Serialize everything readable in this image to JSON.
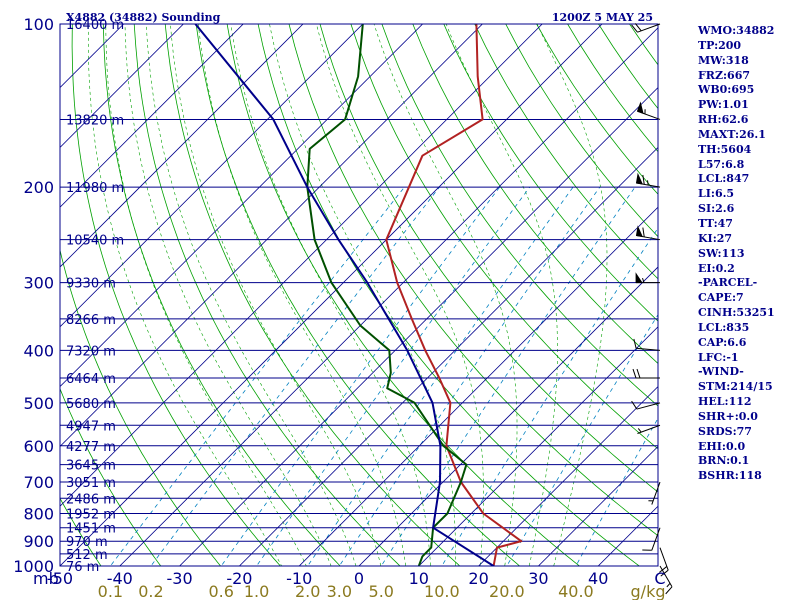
{
  "chart_data": {
    "type": "line",
    "title_left": "X4882 (34882) Sounding",
    "title_right": "1200Z  5 MAY 25",
    "pressure_axis_label": "mb",
    "pressure_ticks": [
      100,
      200,
      300,
      400,
      500,
      600,
      700,
      800,
      900,
      1000
    ],
    "temperature_ticks": [
      "-50",
      "-40",
      "-30",
      "-20",
      "-10",
      "0",
      "10",
      "20",
      "30",
      "40"
    ],
    "temperature_unit": "C",
    "mixing_ratio_ticks": [
      "0.1",
      "0.2",
      "0.6",
      "1.0",
      "2.0",
      "3.0",
      "5.0",
      "10.0",
      "20.0",
      "40.0"
    ],
    "mixing_ratio_unit": "g/kg",
    "heights": [
      {
        "p": 100,
        "label": "16400 m"
      },
      {
        "p": 150,
        "label": "13820 m"
      },
      {
        "p": 200,
        "label": "11980 m"
      },
      {
        "p": 250,
        "label": "10540 m"
      },
      {
        "p": 300,
        "label": "9330 m"
      },
      {
        "p": 350,
        "label": "8266 m"
      },
      {
        "p": 400,
        "label": "7320 m"
      },
      {
        "p": 450,
        "label": "6464 m"
      },
      {
        "p": 500,
        "label": "5680 m"
      },
      {
        "p": 550,
        "label": "4947 m"
      },
      {
        "p": 600,
        "label": "4277 m"
      },
      {
        "p": 650,
        "label": "3645 m"
      },
      {
        "p": 700,
        "label": "3051 m"
      },
      {
        "p": 750,
        "label": "2486 m"
      },
      {
        "p": 800,
        "label": "1952 m"
      },
      {
        "p": 850,
        "label": "1451 m"
      },
      {
        "p": 900,
        "label": "970 m"
      },
      {
        "p": 950,
        "label": "512 m"
      },
      {
        "p": 1000,
        "label": "76 m"
      }
    ],
    "series": [
      {
        "name": "temperature",
        "color": "#b22222",
        "points": [
          {
            "p": 1000,
            "t": 22.5
          },
          {
            "p": 925,
            "t": 20.0
          },
          {
            "p": 900,
            "t": 23.0
          },
          {
            "p": 800,
            "t": 12.0
          },
          {
            "p": 700,
            "t": 3.0
          },
          {
            "p": 600,
            "t": -5.5
          },
          {
            "p": 500,
            "t": -12.0
          },
          {
            "p": 450,
            "t": -18.0
          },
          {
            "p": 400,
            "t": -25.0
          },
          {
            "p": 350,
            "t": -32.5
          },
          {
            "p": 300,
            "t": -41.0
          },
          {
            "p": 250,
            "t": -50.0
          },
          {
            "p": 200,
            "t": -55.0
          },
          {
            "p": 175,
            "t": -58.0
          },
          {
            "p": 150,
            "t": -54.0
          },
          {
            "p": 125,
            "t": -62.0
          },
          {
            "p": 100,
            "t": -71.0
          }
        ]
      },
      {
        "name": "dewpoint",
        "color": "#005000",
        "points": [
          {
            "p": 1000,
            "t": 10.0
          },
          {
            "p": 960,
            "t": 9.0
          },
          {
            "p": 925,
            "t": 9.0
          },
          {
            "p": 850,
            "t": 6.0
          },
          {
            "p": 800,
            "t": 6.0
          },
          {
            "p": 700,
            "t": 3.0
          },
          {
            "p": 650,
            "t": 1.0
          },
          {
            "p": 600,
            "t": -6.0
          },
          {
            "p": 500,
            "t": -18.0
          },
          {
            "p": 470,
            "t": -25.0
          },
          {
            "p": 440,
            "t": -27.0
          },
          {
            "p": 400,
            "t": -31.0
          },
          {
            "p": 360,
            "t": -40.0
          },
          {
            "p": 300,
            "t": -52.0
          },
          {
            "p": 250,
            "t": -62.0
          },
          {
            "p": 200,
            "t": -72.0
          },
          {
            "p": 170,
            "t": -78.0
          },
          {
            "p": 150,
            "t": -77.0
          },
          {
            "p": 125,
            "t": -82.0
          },
          {
            "p": 100,
            "t": -90.0
          }
        ]
      },
      {
        "name": "parcel",
        "color": "#00008b",
        "points": [
          {
            "p": 1000,
            "t": 22.5
          },
          {
            "p": 850,
            "t": 6.0
          },
          {
            "p": 700,
            "t": -0.5
          },
          {
            "p": 600,
            "t": -6.5
          },
          {
            "p": 500,
            "t": -15.0
          },
          {
            "p": 400,
            "t": -28.0
          },
          {
            "p": 300,
            "t": -46.0
          },
          {
            "p": 250,
            "t": -58.0
          },
          {
            "p": 200,
            "t": -72.0
          },
          {
            "p": 150,
            "t": -89.0
          },
          {
            "p": 100,
            "t": -118.0
          }
        ]
      }
    ],
    "wind_barbs": [
      {
        "p": 100,
        "dir": 250,
        "speed": 20
      },
      {
        "p": 150,
        "dir": 290,
        "speed": 55
      },
      {
        "p": 200,
        "dir": 280,
        "speed": 65
      },
      {
        "p": 250,
        "dir": 280,
        "speed": 60
      },
      {
        "p": 300,
        "dir": 270,
        "speed": 55
      },
      {
        "p": 400,
        "dir": 275,
        "speed": 10
      },
      {
        "p": 450,
        "dir": 270,
        "speed": 20
      },
      {
        "p": 500,
        "dir": 255,
        "speed": 10
      },
      {
        "p": 550,
        "dir": 250,
        "speed": 5
      },
      {
        "p": 700,
        "dir": 200,
        "speed": 5
      },
      {
        "p": 850,
        "dir": 200,
        "speed": 10
      },
      {
        "p": 925,
        "dir": 160,
        "speed": 20
      },
      {
        "p": 1000,
        "dir": 150,
        "speed": 15
      }
    ],
    "grid": true,
    "colors": {
      "isobar": "#00008b",
      "isotherm": "#00008b",
      "dry_adiabat": "#00a000",
      "moist_adiabat": "#00a000",
      "mixing_ratio": "#808040",
      "isohume": "#0080c0",
      "mixing_label": "#8b7a20"
    }
  },
  "indices": [
    "WMO:34882",
    "TP:200",
    "MW:318",
    "FRZ:667",
    "WB0:695",
    "PW:1.01",
    "RH:62.6",
    "MAXT:26.1",
    "TH:5604",
    "L57:6.8",
    "LCL:847",
    "LI:6.5",
    "SI:2.6",
    "TT:47",
    "KI:27",
    "SW:113",
    "EI:0.2",
    "-PARCEL-",
    "CAPE:7",
    "CINH:53251",
    "LCL:835",
    "CAP:6.6",
    "LFC:-1",
    "-WIND-",
    "STM:214/15",
    "HEL:112",
    "SHR+:0.0",
    "SRDS:77",
    "EHI:0.0",
    "BRN:0.1",
    "BSHR:118"
  ]
}
